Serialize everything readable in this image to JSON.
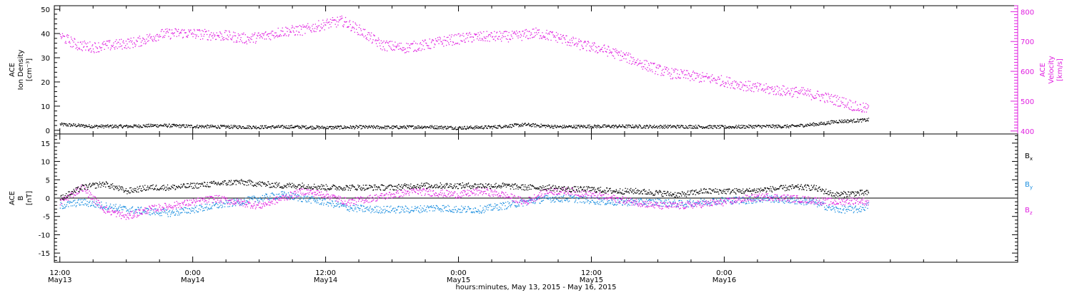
{
  "chart_data": [
    {
      "type": "scatter",
      "ylabel_lines": [
        "ACE",
        "Ion Density",
        "[cm⁻³]"
      ],
      "y2label_lines": [
        "ACE",
        "Velocity",
        "[km/s]"
      ],
      "ylim": [
        -1.5,
        51.5
      ],
      "y2lim": [
        390,
        820
      ],
      "yticks": [
        0,
        10,
        20,
        30,
        40,
        50
      ],
      "y2ticks": [
        400,
        500,
        600,
        700,
        800
      ],
      "series": [
        {
          "axis": "left",
          "color": "#000000",
          "x": [
            0,
            3,
            6,
            9,
            12,
            15,
            18,
            21,
            24,
            27,
            30,
            33,
            36,
            39,
            42,
            45,
            48,
            51,
            54,
            57,
            60,
            63,
            66,
            69,
            70,
            72,
            73
          ],
          "values": [
            2.6,
            1.8,
            1.8,
            2.2,
            1.8,
            1.6,
            1.5,
            1.6,
            1.3,
            1.5,
            1.4,
            1.6,
            1.2,
            1.5,
            2.5,
            1.6,
            1.8,
            1.8,
            1.7,
            1.7,
            1.5,
            1.8,
            1.8,
            3.0,
            3.8,
            4.2,
            4.5
          ]
        },
        {
          "axis": "right",
          "color": "#e020e0",
          "x": [
            0,
            1.5,
            3,
            5,
            7,
            9,
            11,
            13,
            15,
            17,
            18.5,
            20,
            22,
            24,
            25.5,
            27,
            29,
            31,
            33,
            35,
            37,
            39,
            41,
            43,
            45,
            47,
            49,
            51,
            53,
            55,
            57,
            59,
            61,
            63,
            65,
            67,
            69,
            70,
            71,
            72,
            73
          ],
          "values": [
            720,
            690,
            682,
            690,
            700,
            725,
            730,
            725,
            720,
            710,
            720,
            735,
            740,
            760,
            770,
            740,
            690,
            680,
            690,
            705,
            715,
            718,
            718,
            730,
            715,
            690,
            675,
            650,
            620,
            595,
            585,
            575,
            560,
            545,
            537,
            530,
            515,
            505,
            495,
            480,
            475
          ]
        }
      ]
    },
    {
      "type": "scatter",
      "ylabel_lines": [
        "ACE",
        "B",
        "[nT]"
      ],
      "ylim": [
        -17.5,
        17.5
      ],
      "yticks": [
        -15,
        -10,
        -5,
        0,
        5,
        10,
        15
      ],
      "series": [
        {
          "name": "Bx",
          "color": "#000000",
          "x": [
            0,
            2,
            4,
            6,
            8,
            10,
            12,
            14,
            16,
            18,
            20,
            22,
            24,
            26,
            28,
            30,
            32,
            34,
            36,
            38,
            40,
            42,
            44,
            46,
            48,
            50,
            52,
            54,
            56,
            58,
            60,
            62,
            64,
            66,
            68,
            70,
            72,
            73
          ],
          "values": [
            0,
            3,
            4,
            2,
            3,
            3,
            3.5,
            4,
            4.5,
            4,
            3.5,
            3.5,
            3,
            3,
            3,
            3,
            3.5,
            3.5,
            3.5,
            3.5,
            3.5,
            3,
            3,
            2.5,
            2.5,
            2,
            2,
            1.5,
            1,
            2,
            2,
            2,
            2.5,
            3,
            3,
            1,
            1.5,
            1.5
          ]
        },
        {
          "name": "By",
          "color": "#1e90e0",
          "x": [
            0,
            2,
            4,
            6,
            8,
            10,
            12,
            14,
            16,
            18,
            20,
            22,
            24,
            26,
            28,
            30,
            32,
            34,
            36,
            38,
            40,
            42,
            44,
            46,
            48,
            50,
            52,
            54,
            56,
            58,
            60,
            62,
            64,
            66,
            68,
            70,
            72,
            73
          ],
          "values": [
            -2,
            -1,
            -2,
            -3,
            -3.5,
            -4,
            -3,
            -2,
            -1,
            0,
            1,
            0,
            -1,
            -2.5,
            -3,
            -3,
            -3,
            -2.5,
            -3,
            -3,
            -2,
            -1,
            0,
            0,
            -0.5,
            -1,
            -1,
            -1,
            -1.5,
            -1,
            -0.5,
            -0.5,
            0,
            -0.5,
            -1,
            -3,
            -3,
            -2
          ]
        },
        {
          "name": "Bz",
          "color": "#e020e0",
          "x": [
            0,
            2,
            4,
            6,
            8,
            10,
            12,
            14,
            16,
            18,
            20,
            22,
            24,
            26,
            28,
            30,
            32,
            34,
            36,
            38,
            40,
            42,
            44,
            46,
            48,
            50,
            52,
            54,
            56,
            58,
            60,
            62,
            64,
            66,
            68,
            70,
            72,
            73
          ],
          "values": [
            -1,
            3,
            -3,
            -5,
            -3,
            -2,
            -1,
            0,
            -1,
            -2,
            0,
            2,
            1,
            -1,
            0,
            1,
            2,
            1.5,
            1,
            2,
            1,
            -1,
            2,
            2,
            1,
            0,
            -1,
            -2,
            -2,
            -1.5,
            -1,
            0,
            0.5,
            0,
            -0.5,
            -1,
            -0.5,
            -1
          ]
        }
      ],
      "legend_labels": [
        {
          "main": "B",
          "sub": "x",
          "color": "#000000"
        },
        {
          "main": "B",
          "sub": "y",
          "color": "#1e90e0"
        },
        {
          "main": "B",
          "sub": "z",
          "color": "#e020e0"
        }
      ]
    }
  ],
  "time_axis": {
    "xlim": [
      -0.5,
      86.5
    ],
    "ticks": [
      {
        "t": 0,
        "time": "12:00",
        "date": "May13"
      },
      {
        "t": 12,
        "time": "0:00",
        "date": "May14"
      },
      {
        "t": 24,
        "time": "12:00",
        "date": "May14"
      },
      {
        "t": 36,
        "time": "0:00",
        "date": "May15"
      },
      {
        "t": 48,
        "time": "12:00",
        "date": "May15"
      },
      {
        "t": 60,
        "time": "0:00",
        "date": "May16"
      }
    ],
    "caption": "hours:minutes, May 13, 2015 - May 16, 2015"
  }
}
